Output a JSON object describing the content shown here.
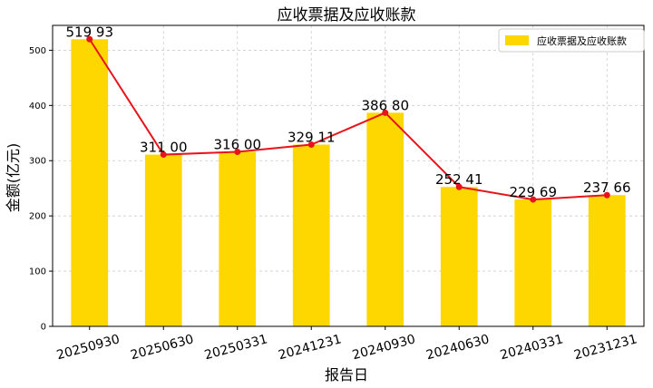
{
  "chart_data": {
    "type": "bar",
    "title": "应收票据及应收账款",
    "xlabel": "报告日",
    "ylabel": "金额(亿元)",
    "categories": [
      "20250930",
      "20250630",
      "20250331",
      "20241231",
      "20240930",
      "20240630",
      "20240331",
      "20231231"
    ],
    "series": [
      {
        "name": "应收票据及应收账款",
        "values": [
          519.93,
          311.0,
          316.0,
          329.11,
          386.8,
          252.41,
          229.69,
          237.66
        ],
        "labels": [
          "519 93",
          "311 00",
          "316 00",
          "329 11",
          "386 80",
          "252 41",
          "229 69",
          "237 66"
        ]
      }
    ],
    "overlay_line": true,
    "ylim": [
      0,
      545
    ],
    "yticks": [
      0,
      100,
      200,
      300,
      400,
      500
    ],
    "grid": true,
    "legend_position": "top-right",
    "colors": {
      "bar": "#FFD700",
      "line": "#E8141B",
      "marker": "#E8141B",
      "grid": "#cccccc"
    }
  }
}
